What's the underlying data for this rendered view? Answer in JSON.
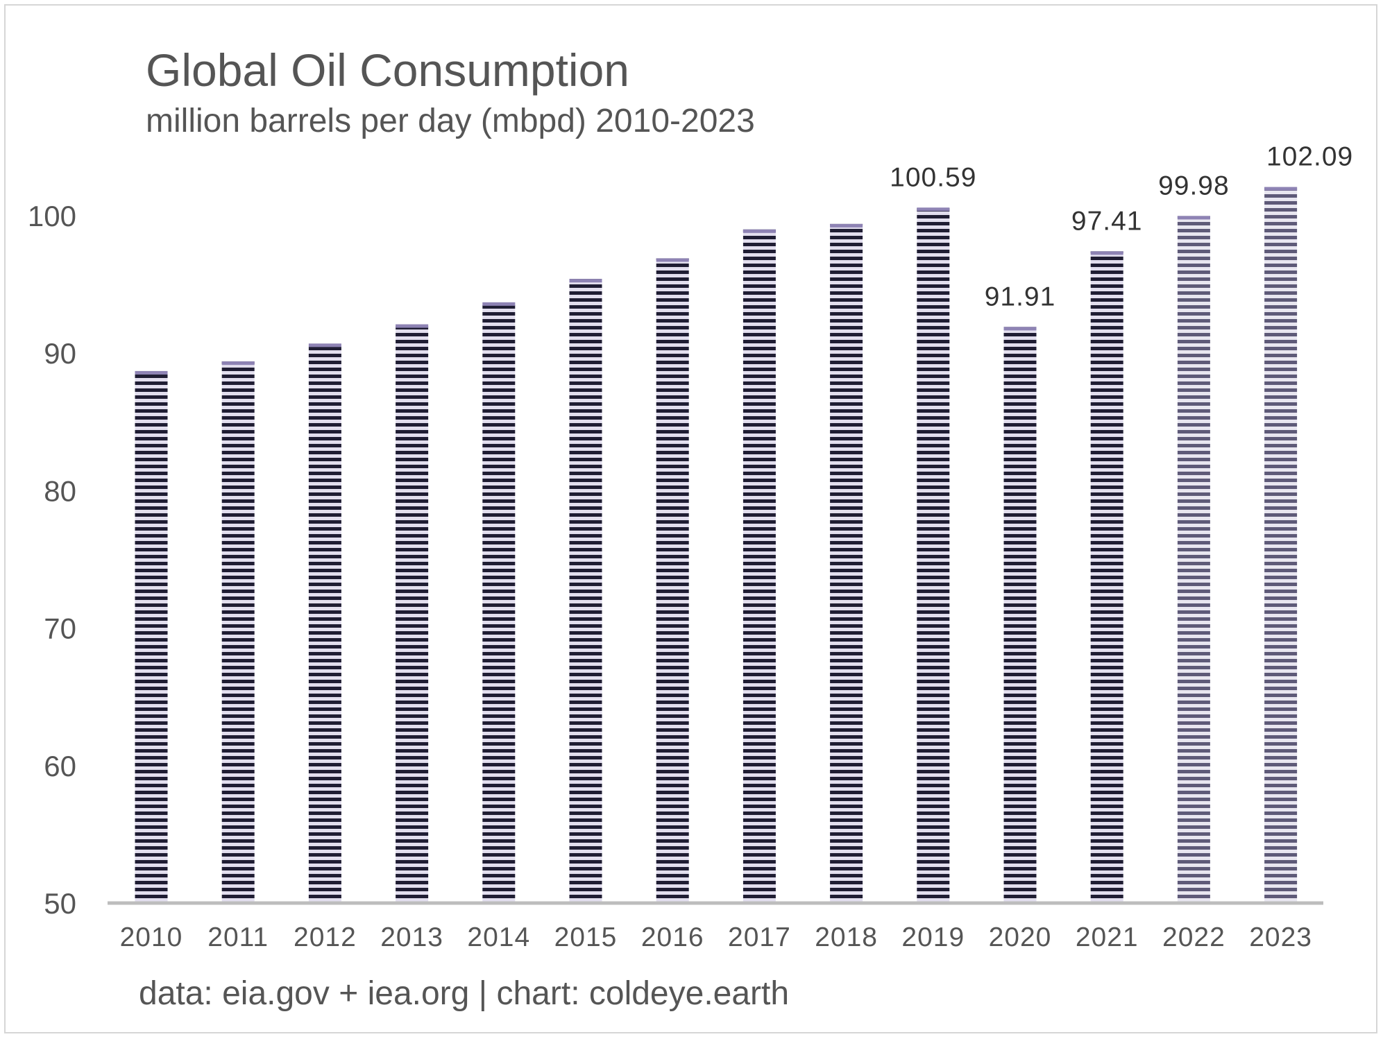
{
  "chart_data": {
    "type": "bar",
    "title": "Global Oil Consumption",
    "subtitle": "million barrels per day (mbpd) 2010-2023",
    "categories": [
      "2010",
      "2011",
      "2012",
      "2013",
      "2014",
      "2015",
      "2016",
      "2017",
      "2018",
      "2019",
      "2020",
      "2021",
      "2022",
      "2023"
    ],
    "values": [
      88.7,
      89.4,
      90.7,
      92.1,
      93.7,
      95.4,
      96.9,
      99.0,
      99.4,
      100.59,
      91.91,
      97.41,
      99.98,
      102.09
    ],
    "data_labels": [
      "",
      "",
      "",
      "",
      "",
      "",
      "",
      "",
      "",
      "100.59",
      "91.91",
      "97.41",
      "99.98",
      "102.09"
    ],
    "yticks": [
      "50",
      "60",
      "70",
      "80",
      "90",
      "100"
    ],
    "ylim": [
      50,
      104
    ],
    "xlabel": "",
    "ylabel": "",
    "grid": false,
    "legend": "none",
    "colors": {
      "bar_stripe_dark": "#1f1d33",
      "bar_stripe_light": "#e2deee",
      "bar_stripe_dark_2022_2023": "#5e5a78",
      "bar_stripe_light_2022_2023": "#e8e6f0",
      "bar_top": "#8e83b4",
      "axis": "#bdbdbd",
      "text": "#555555"
    },
    "footer": "data: eia.gov + iea.org | chart: coldeye.earth"
  }
}
